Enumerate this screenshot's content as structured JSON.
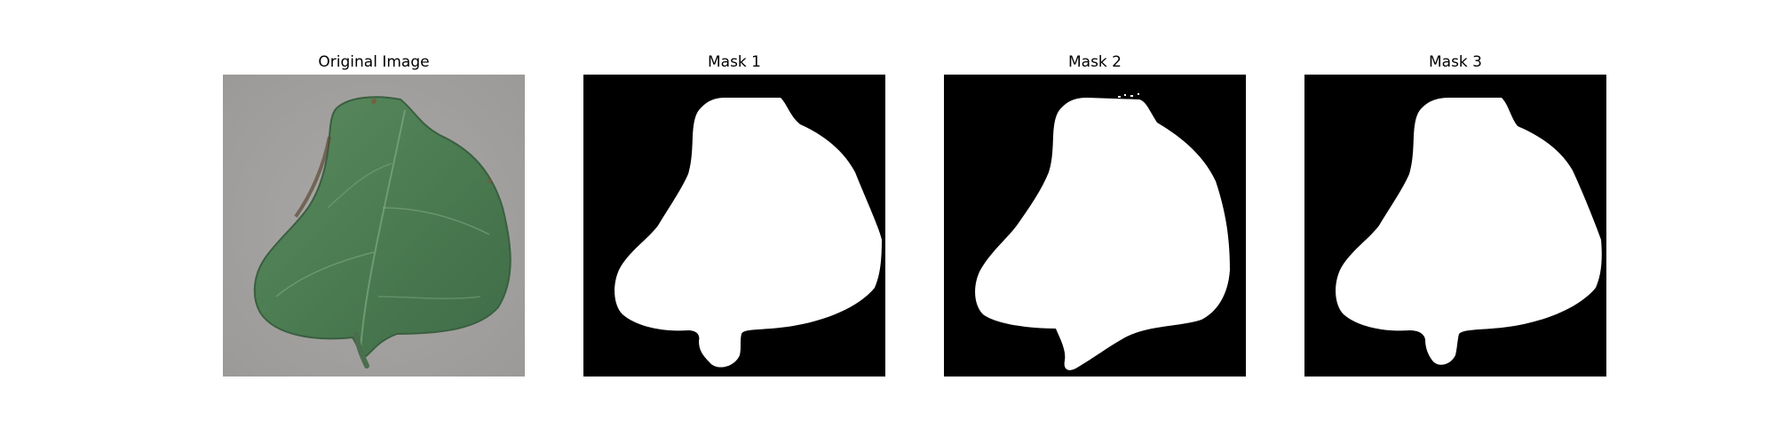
{
  "figure": {
    "panels": [
      {
        "title": "Original Image",
        "kind": "photo",
        "subject": "green leaf on gray background"
      },
      {
        "title": "Mask 1",
        "kind": "mask"
      },
      {
        "title": "Mask 2",
        "kind": "mask"
      },
      {
        "title": "Mask 3",
        "kind": "mask"
      }
    ]
  },
  "colors": {
    "mask_background": "#000000",
    "mask_foreground": "#ffffff",
    "photo_background": "#a4a2a0",
    "leaf_green": "#4f7c55"
  }
}
